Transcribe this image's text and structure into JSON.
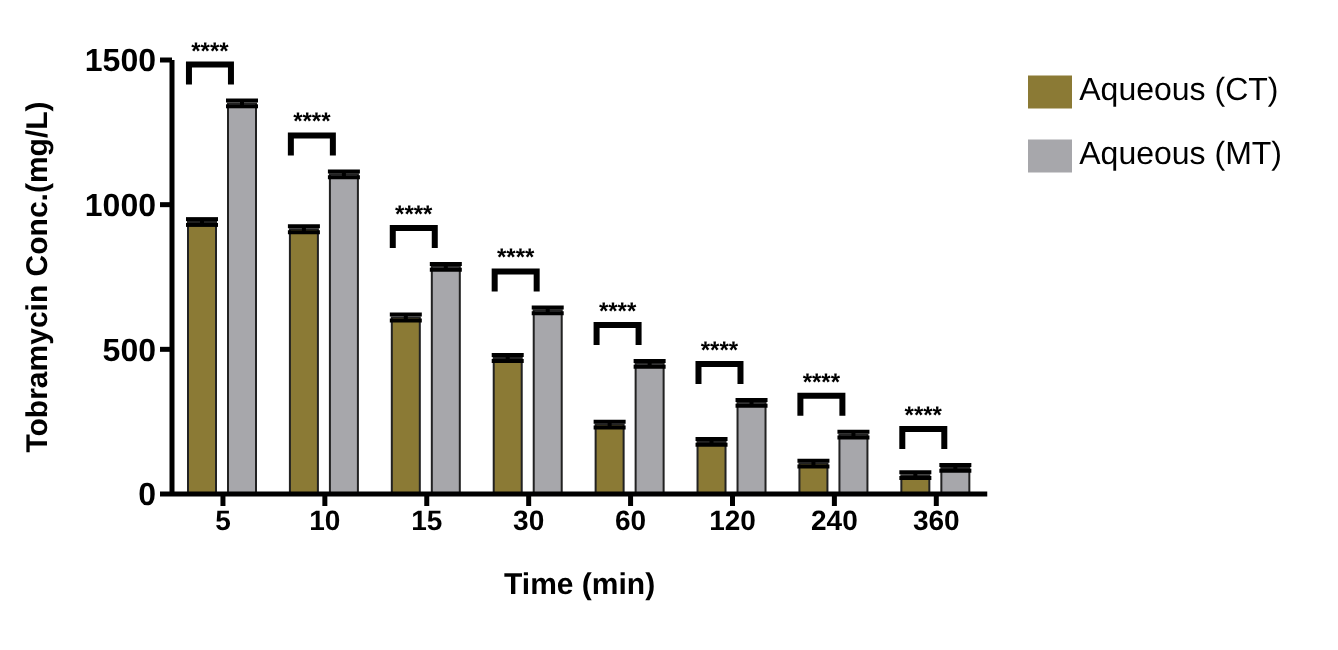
{
  "chart_data": {
    "type": "bar",
    "xlabel": "Time (min)",
    "ylabel": "Tobramycin Conc.(mg/L)",
    "categories": [
      "5",
      "10",
      "15",
      "30",
      "60",
      "120",
      "240",
      "360"
    ],
    "series": [
      {
        "name": "Aqueous (CT)",
        "color": "#8b7a35",
        "values": [
          940,
          915,
          610,
          470,
          240,
          180,
          105,
          65
        ],
        "errors": [
          10,
          10,
          10,
          10,
          10,
          10,
          10,
          10
        ]
      },
      {
        "name": "Aqueous (MT)",
        "color": "#a7a7ab",
        "values": [
          1350,
          1105,
          785,
          635,
          450,
          315,
          205,
          90
        ],
        "errors": [
          10,
          10,
          10,
          10,
          10,
          10,
          10,
          10
        ]
      }
    ],
    "ylim": [
      0,
      1500
    ],
    "yticks": [
      0,
      500,
      1000,
      1500
    ],
    "grid": false,
    "legend": "top right",
    "annotations": [
      "****",
      "****",
      "****",
      "****",
      "****",
      "****",
      "****",
      "****"
    ]
  }
}
